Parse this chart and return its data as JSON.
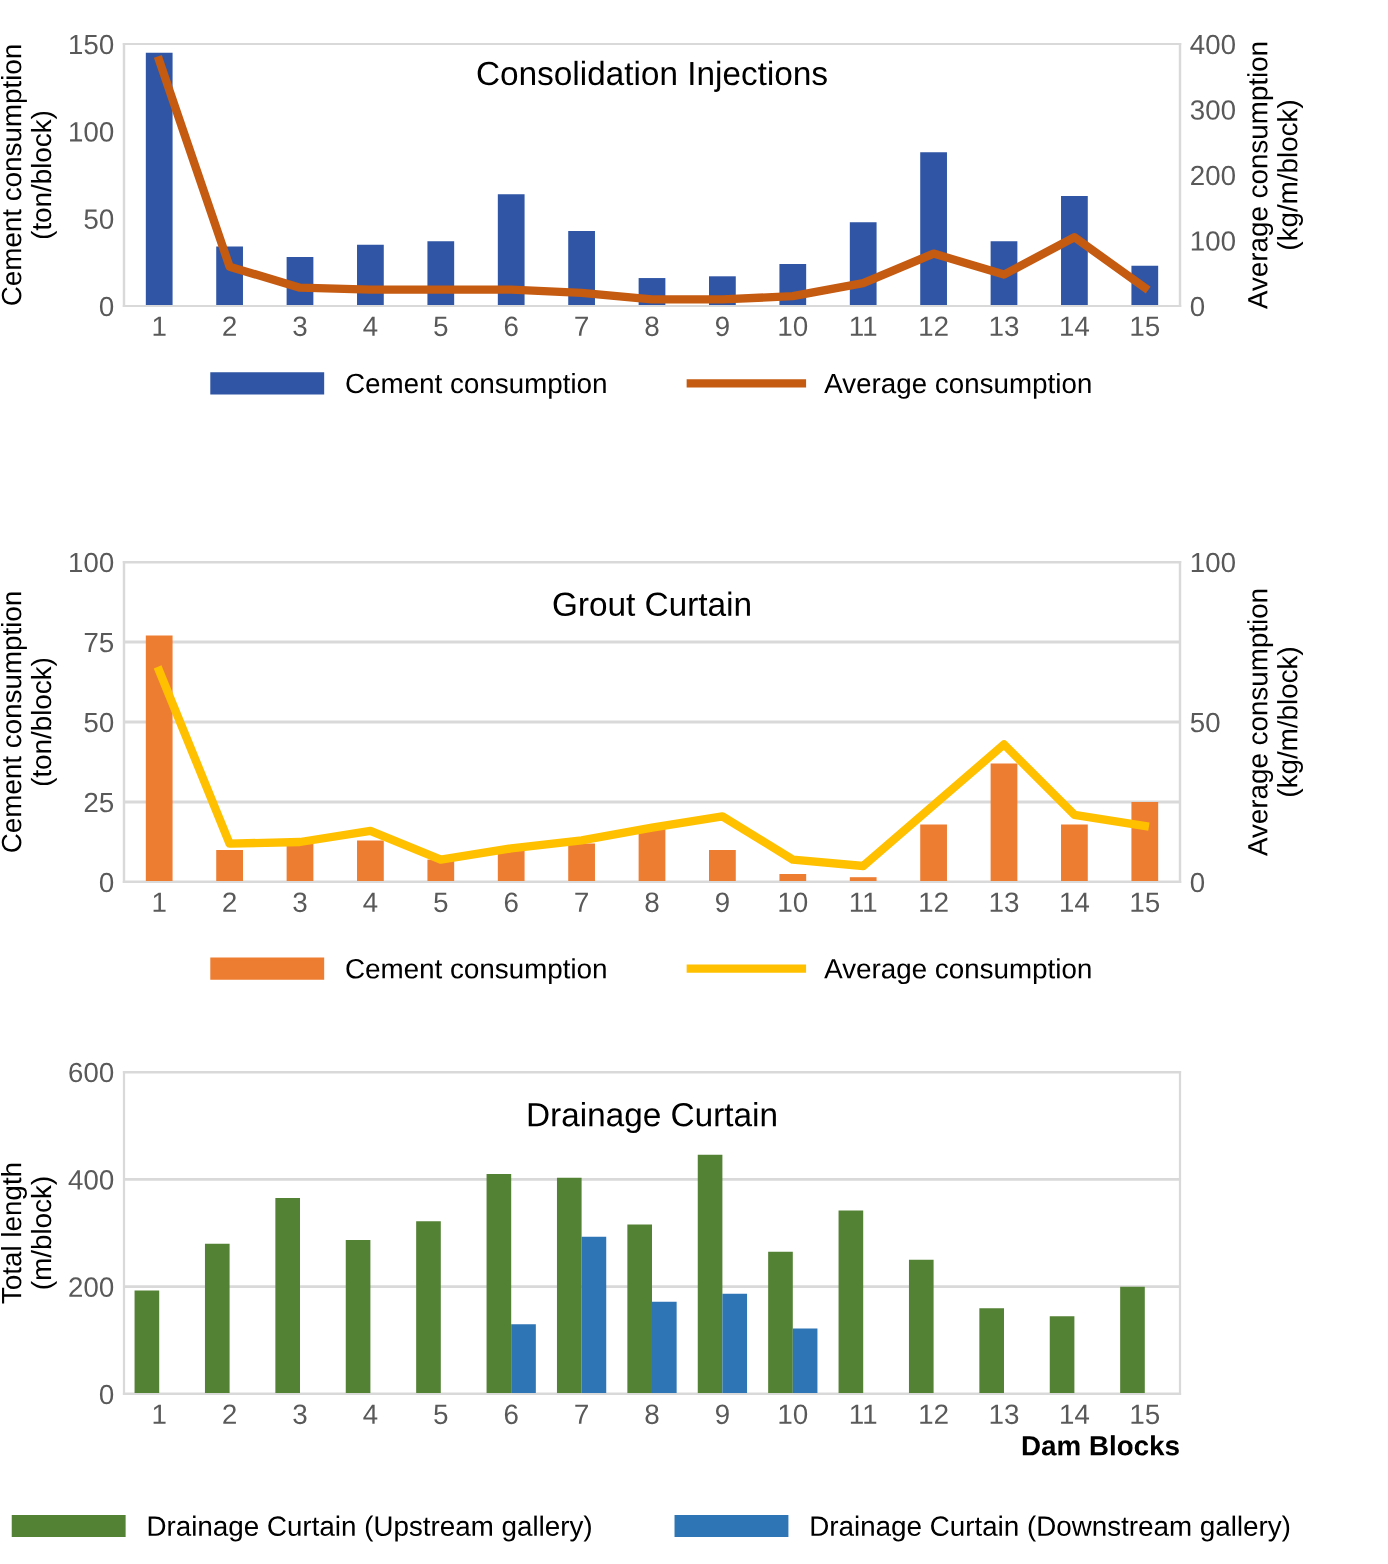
{
  "chart_data": [
    {
      "type": "bar",
      "title": "Consolidation Injections",
      "ylabel": "Cement consumption\n(ton/block)",
      "y2label": "Average consumption\n(kg/m/block)",
      "categories": [
        "1",
        "2",
        "3",
        "4",
        "5",
        "6",
        "7",
        "8",
        "9",
        "10",
        "11",
        "12",
        "13",
        "14",
        "15"
      ],
      "series": [
        {
          "name": "Cement consumption",
          "color": "#2f55a4",
          "values": [
            145,
            34,
            28,
            35,
            37,
            64,
            43,
            16,
            17,
            24,
            48,
            88,
            37,
            63,
            23
          ]
        },
        {
          "name": "Average consumption",
          "type": "line",
          "axis": "y2",
          "color": "#c55a11",
          "values": [
            375,
            60,
            28,
            25,
            25,
            25,
            20,
            10,
            10,
            15,
            35,
            80,
            48,
            105,
            28
          ]
        }
      ],
      "ylim": [
        0,
        150
      ],
      "yticks": [
        0,
        50,
        100,
        150
      ],
      "y2lim": [
        0,
        400
      ],
      "y2ticks": [
        0,
        100,
        200,
        300,
        400
      ],
      "grid": false,
      "legend": "bottom"
    },
    {
      "type": "bar",
      "title": "Grout Curtain",
      "ylabel": "Cement consumption\n(ton/block)",
      "y2label": "Average consumption\n(kg/m/block)",
      "categories": [
        "1",
        "2",
        "3",
        "4",
        "5",
        "6",
        "7",
        "8",
        "9",
        "10",
        "11",
        "12",
        "13",
        "14",
        "15"
      ],
      "series": [
        {
          "name": "Cement consumption",
          "color": "#ed7d31",
          "values": [
            77,
            10,
            12,
            13,
            7,
            10,
            12,
            17,
            10,
            2.5,
            1.5,
            18,
            37,
            18,
            25
          ]
        },
        {
          "name": "Average consumption",
          "type": "line",
          "axis": "y2",
          "color": "#ffc000",
          "values": [
            66,
            12,
            12.5,
            16,
            7,
            10.5,
            13,
            17,
            20.5,
            7,
            5,
            24,
            43,
            21,
            17.5
          ]
        }
      ],
      "ylim": [
        0,
        100
      ],
      "yticks": [
        0,
        25,
        50,
        75,
        100
      ],
      "y2lim": [
        0,
        100
      ],
      "y2ticks": [
        0,
        50,
        100
      ],
      "grid": "y",
      "legend": "bottom"
    },
    {
      "type": "bar",
      "title": "Drainage Curtain",
      "ylabel": "Total length\n(m/block)",
      "xlabel": "Dam Blocks",
      "categories": [
        "1",
        "2",
        "3",
        "4",
        "5",
        "6",
        "7",
        "8",
        "9",
        "10",
        "11",
        "12",
        "13",
        "14",
        "15"
      ],
      "series": [
        {
          "name": "Drainage Curtain (Upstream gallery)",
          "color": "#548235",
          "values": [
            193,
            280,
            365,
            287,
            322,
            410,
            403,
            316,
            446,
            265,
            342,
            250,
            160,
            145,
            200
          ]
        },
        {
          "name": "Drainage Curtain (Downstream gallery)",
          "color": "#2e75b6",
          "values": [
            null,
            null,
            null,
            null,
            null,
            130,
            293,
            172,
            187,
            122,
            null,
            null,
            null,
            null,
            null
          ]
        }
      ],
      "ylim": [
        0,
        600
      ],
      "yticks": [
        0,
        200,
        400,
        600
      ],
      "grid": "y",
      "legend": "bottom"
    }
  ]
}
